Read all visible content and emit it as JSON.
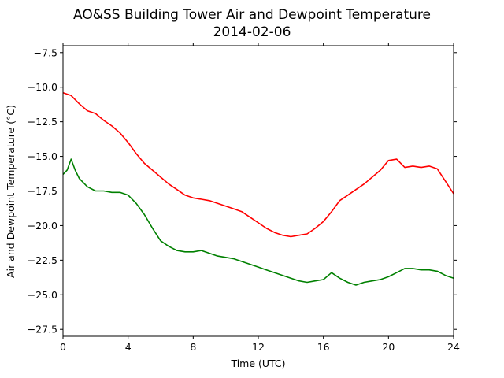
{
  "chart_data": {
    "type": "line",
    "title": "AO&SS Building Tower Air and Dewpoint Temperature",
    "subtitle": "2014-02-06",
    "xlabel": "Time (UTC)",
    "ylabel": "Air and Dewpoint Temperature (°C)",
    "xlim": [
      0,
      24
    ],
    "ylim": [
      -28,
      -7
    ],
    "xticks": [
      0,
      4,
      8,
      12,
      16,
      20,
      24
    ],
    "xtick_labels": [
      "0",
      "4",
      "8",
      "12",
      "16",
      "20",
      "24"
    ],
    "yticks": [
      -27.5,
      -25.0,
      -22.5,
      -20.0,
      -17.5,
      -15.0,
      -12.5,
      -10.0,
      -7.5
    ],
    "ytick_labels": [
      "−27.5",
      "−25.0",
      "−22.5",
      "−20.0",
      "−17.5",
      "−15.0",
      "−12.5",
      "−10.0",
      "−7.5"
    ],
    "grid": false,
    "series": [
      {
        "color": "#ff0000",
        "x": [
          0,
          0.5,
          1,
          1.5,
          2,
          2.5,
          3,
          3.5,
          4,
          4.5,
          5,
          5.5,
          6,
          6.5,
          7,
          7.5,
          8,
          8.5,
          9,
          9.5,
          10,
          10.5,
          11,
          11.5,
          12,
          12.5,
          13,
          13.5,
          14,
          14.5,
          15,
          15.5,
          16,
          16.5,
          17,
          17.5,
          18,
          18.5,
          19,
          19.5,
          20,
          20.5,
          21,
          21.5,
          22,
          22.5,
          23,
          23.5,
          24
        ],
        "y": [
          -10.4,
          -10.6,
          -11.2,
          -11.7,
          -11.9,
          -12.4,
          -12.8,
          -13.3,
          -14.0,
          -14.8,
          -15.5,
          -16.0,
          -16.5,
          -17.0,
          -17.4,
          -17.8,
          -18.0,
          -18.1,
          -18.2,
          -18.4,
          -18.6,
          -18.8,
          -19.0,
          -19.4,
          -19.8,
          -20.2,
          -20.5,
          -20.7,
          -20.8,
          -20.7,
          -20.6,
          -20.2,
          -19.7,
          -19.0,
          -18.2,
          -17.8,
          -17.4,
          -17.0,
          -16.5,
          -16.0,
          -15.3,
          -15.2,
          -15.8,
          -15.7,
          -15.8,
          -15.7,
          -15.9,
          -16.8,
          -17.7
        ]
      },
      {
        "color": "#008000",
        "x": [
          0,
          0.25,
          0.5,
          0.75,
          1,
          1.5,
          2,
          2.5,
          3,
          3.5,
          4,
          4.5,
          5,
          5.5,
          6,
          6.5,
          7,
          7.5,
          8,
          8.5,
          9,
          9.5,
          10,
          10.5,
          11,
          11.5,
          12,
          12.5,
          13,
          13.5,
          14,
          14.5,
          15,
          15.5,
          16,
          16.5,
          17,
          17.5,
          18,
          18.5,
          19,
          19.5,
          20,
          20.5,
          21,
          21.5,
          22,
          22.5,
          23,
          23.5,
          24
        ],
        "y": [
          -16.3,
          -16.0,
          -15.2,
          -16.0,
          -16.6,
          -17.2,
          -17.5,
          -17.5,
          -17.6,
          -17.6,
          -17.8,
          -18.4,
          -19.2,
          -20.2,
          -21.1,
          -21.5,
          -21.8,
          -21.9,
          -21.9,
          -21.8,
          -22.0,
          -22.2,
          -22.3,
          -22.4,
          -22.6,
          -22.8,
          -23.0,
          -23.2,
          -23.4,
          -23.6,
          -23.8,
          -24.0,
          -24.1,
          -24.0,
          -23.9,
          -23.4,
          -23.8,
          -24.1,
          -24.3,
          -24.1,
          -24.0,
          -23.9,
          -23.7,
          -23.4,
          -23.1,
          -23.1,
          -23.2,
          -23.2,
          -23.3,
          -23.6,
          -23.8
        ]
      }
    ]
  }
}
